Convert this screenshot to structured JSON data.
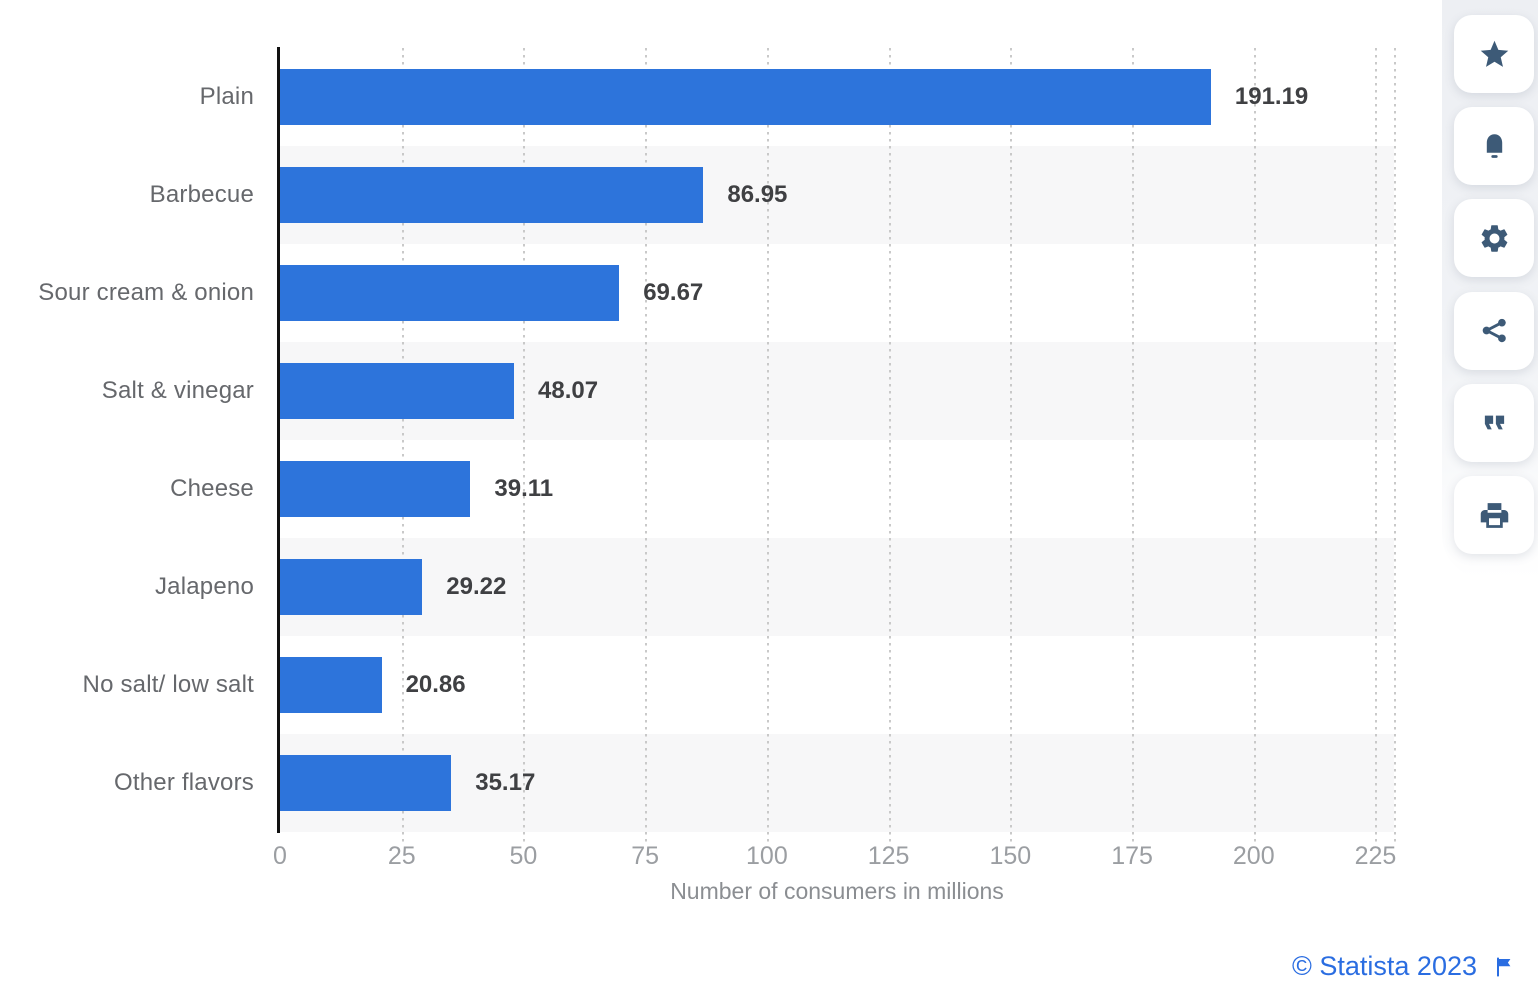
{
  "chart_data": {
    "type": "bar",
    "orientation": "horizontal",
    "title": "",
    "categories": [
      "Plain",
      "Barbecue",
      "Sour cream & onion",
      "Salt & vinegar",
      "Cheese",
      "Jalapeno",
      "No salt/ low salt",
      "Other flavors"
    ],
    "values": [
      191.19,
      86.95,
      69.67,
      48.07,
      39.11,
      29.22,
      20.86,
      35.17
    ],
    "value_labels": [
      "191.19",
      "86.95",
      "69.67",
      "48.07",
      "39.11",
      "29.22",
      "20.86",
      "35.17"
    ],
    "xlabel": "Number of consumers in millions",
    "ylabel": "",
    "x_ticks": [
      0,
      25,
      50,
      75,
      100,
      125,
      150,
      175,
      200,
      225
    ],
    "xlim": [
      0,
      228.8
    ],
    "grid": "vertical-dotted",
    "legend": "none",
    "bar_color": "#2d74db",
    "stripe_color": "#f7f7f8"
  },
  "colors": {
    "bar_blue": "#2d74db",
    "icon_slate": "#3d5a77",
    "footer_blue": "#2a6de1",
    "category_label": "#66686c",
    "value_label": "#3f4043",
    "tick_label": "#9b9ea2"
  },
  "toolbar": {
    "buttons": [
      {
        "icon": "star-icon",
        "name": "favorite-button"
      },
      {
        "icon": "bell-icon",
        "name": "alert-button"
      },
      {
        "icon": "gear-icon",
        "name": "settings-button"
      },
      {
        "icon": "share-icon",
        "name": "share-button"
      },
      {
        "icon": "quote-icon",
        "name": "citation-button"
      },
      {
        "icon": "print-icon",
        "name": "print-button"
      }
    ]
  },
  "footer": {
    "copyright_label": "© Statista 2023",
    "flag_icon": "report-flag-icon"
  }
}
